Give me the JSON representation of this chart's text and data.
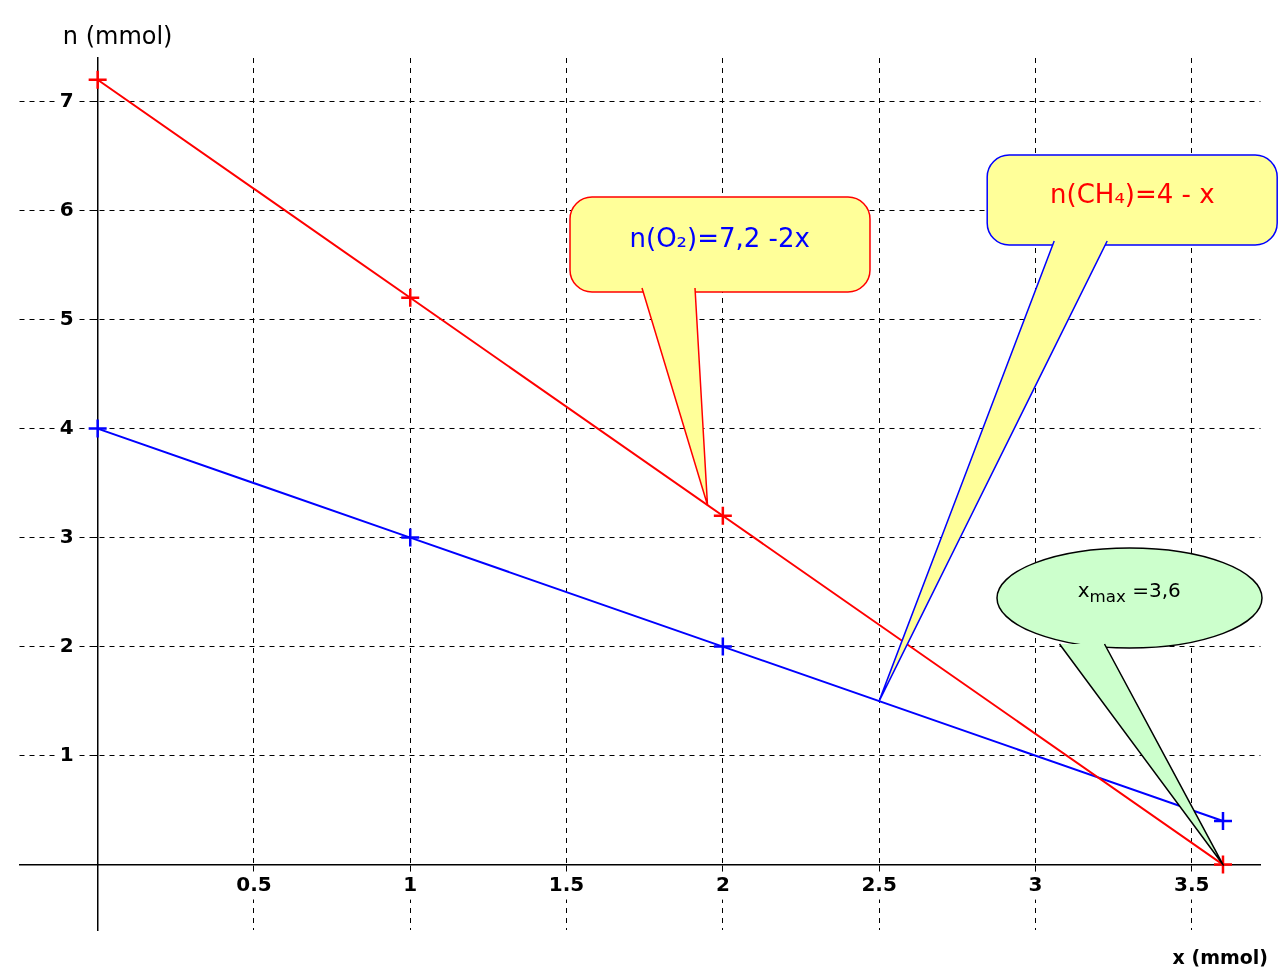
{
  "chart_data": {
    "type": "line",
    "xlabel": "x (mmol)",
    "ylabel": "n (mmol)",
    "x": [
      0,
      1,
      2,
      3.6
    ],
    "series": [
      {
        "color": "#ff0000",
        "values": [
          7.2,
          5.2,
          3.2,
          0
        ]
      },
      {
        "color": "#0000ff",
        "values": [
          4,
          3,
          2,
          0.4
        ]
      }
    ],
    "xlim": [
      -0.25,
      3.72
    ],
    "ylim": [
      -0.6,
      7.4
    ],
    "xticks": [
      0.5,
      1,
      1.5,
      2,
      2.5,
      3,
      3.5
    ],
    "yticks": [
      1,
      2,
      3,
      4,
      5,
      6,
      7
    ],
    "grid": true,
    "legend": false,
    "marker": "cross",
    "line_style": "solid",
    "annotations": [
      "n(O₂)=7,2 -2x",
      {
        "text": "n(CH₄)=4 - x",
        "x": 2.5,
        "y": 1.5
      },
      "x$_{max}$ =3,6"
    ]
  }
}
